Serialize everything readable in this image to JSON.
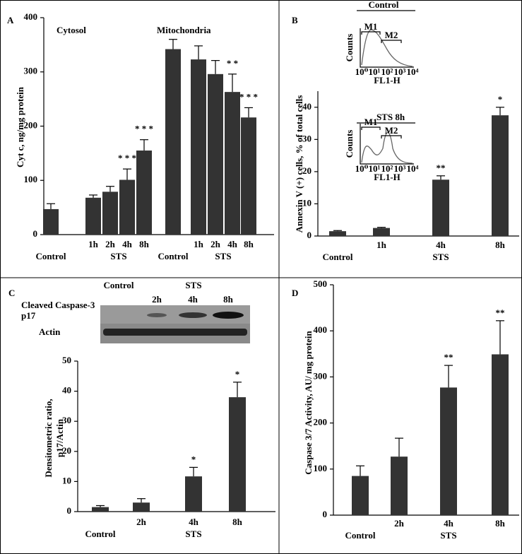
{
  "chart_data": [
    {
      "type": "bar",
      "panel": "A",
      "ylabel": [
        "Cyt c, ng/mg protein"
      ],
      "titles": [
        "Cytosol",
        "Mitochondria"
      ],
      "group_labels": [
        "STS",
        "STS"
      ],
      "categories": [
        "Control",
        "1h",
        "2h",
        "4h",
        "8h",
        "Control",
        "1h",
        "2h",
        "4h",
        "8h"
      ],
      "values": [
        47,
        68,
        79,
        101,
        155,
        342,
        323,
        296,
        263,
        216
      ],
      "errors": [
        10,
        5,
        10,
        20,
        20,
        18,
        25,
        25,
        33,
        18
      ],
      "annotations": [
        null,
        null,
        null,
        "* * *",
        "* * *",
        null,
        null,
        null,
        "* *",
        "* * *"
      ],
      "ylim": [
        0,
        400
      ],
      "yticks": [
        0,
        100,
        200,
        300,
        400
      ],
      "color": "#333333"
    },
    {
      "type": "bar",
      "panel": "B",
      "ylabel": [
        "Annexin V (+) cells, % of total cells"
      ],
      "group_labels": [
        "STS"
      ],
      "categories": [
        "Control",
        "1h",
        "4h",
        "8h"
      ],
      "values": [
        1.5,
        2.5,
        17.5,
        37.5
      ],
      "errors": [
        0.2,
        0.2,
        1.2,
        2.5
      ],
      "annotations": [
        null,
        null,
        "**",
        "*"
      ],
      "ylim": [
        0,
        45
      ],
      "yticks": [
        0,
        10,
        20,
        30,
        40
      ],
      "color": "#333333",
      "insets": [
        {
          "title": "Control",
          "ylabel": "Counts",
          "xlabel": "FL1-H",
          "markers": [
            "M1",
            "M2"
          ],
          "xticks": [
            "10⁰",
            "10¹",
            "10²",
            "10³",
            "10⁴"
          ]
        },
        {
          "title": "STS 8h",
          "ylabel": "Counts",
          "xlabel": "FL1-H",
          "markers": [
            "M1",
            "M2"
          ],
          "xticks": [
            "10⁰",
            "10¹",
            "10²",
            "10³",
            "10⁴"
          ]
        }
      ]
    },
    {
      "type": "bar",
      "panel": "C",
      "ylabel": [
        "Densitometric ratio,",
        "p17/Actin"
      ],
      "group_labels": [
        "STS"
      ],
      "categories": [
        "Control",
        "2h",
        "4h",
        "8h"
      ],
      "values": [
        1.5,
        3,
        11.7,
        38
      ],
      "errors": [
        0.5,
        1.3,
        3,
        5
      ],
      "annotations": [
        null,
        null,
        "*",
        "*"
      ],
      "ylim": [
        0,
        50
      ],
      "yticks": [
        0,
        10,
        20,
        30,
        40,
        50
      ],
      "color": "#333333",
      "blot": {
        "conditions": [
          "Control",
          "STS"
        ],
        "times": [
          "2h",
          "4h",
          "8h"
        ],
        "row_labels": [
          [
            "Cleaved Caspase-3",
            "p17"
          ],
          [
            "Actin"
          ]
        ]
      }
    },
    {
      "type": "bar",
      "panel": "D",
      "ylabel": [
        "Caspase 3/7 Activity, AU/ mg protein"
      ],
      "group_labels": [
        "STS"
      ],
      "categories": [
        "Control",
        "2h",
        "4h",
        "8h"
      ],
      "values": [
        85,
        127,
        277,
        349
      ],
      "errors": [
        22,
        40,
        48,
        73
      ],
      "annotations": [
        null,
        null,
        "**",
        "**"
      ],
      "ylim": [
        0,
        500
      ],
      "yticks": [
        0,
        100,
        200,
        300,
        400,
        500
      ],
      "color": "#333333"
    }
  ]
}
